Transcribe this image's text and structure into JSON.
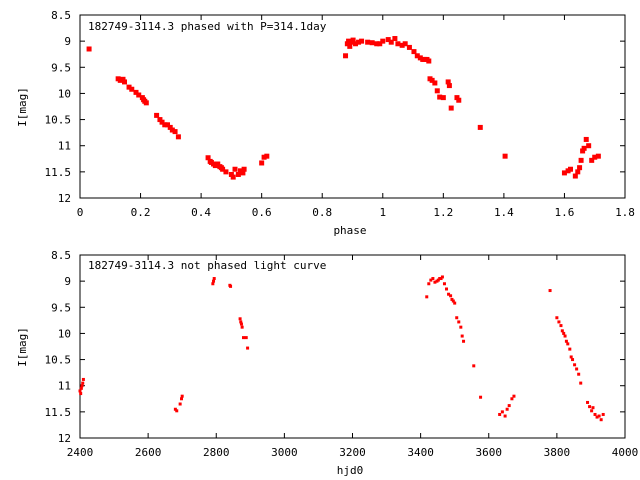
{
  "colors": {
    "points": "#ff0000",
    "axes": "#000000",
    "background": "#ffffff"
  },
  "chart_data": [
    {
      "type": "scatter",
      "title": "182749-3114.3 phased with P=314.1day",
      "xlabel": "phase",
      "ylabel": "I[mag]",
      "xlim": [
        0,
        1.8
      ],
      "ylim": [
        12,
        8.5
      ],
      "y_inverted": true,
      "grid": false,
      "xticks": [
        0,
        0.2,
        0.4,
        0.6,
        0.8,
        1,
        1.2,
        1.4,
        1.6,
        1.8
      ],
      "xtick_labels": [
        "0",
        "0.2",
        "0.4",
        "0.6",
        "0.8",
        "1",
        "1.2",
        "1.4",
        "1.6",
        "1.8"
      ],
      "yticks": [
        8.5,
        9,
        9.5,
        10,
        10.5,
        11,
        11.5,
        12
      ],
      "ytick_labels": [
        "8.5",
        "9",
        "9.5",
        "10",
        "10.5",
        "11",
        "11.5",
        "12"
      ],
      "marker": "filled square",
      "x": [
        0.03,
        0.126,
        0.133,
        0.142,
        0.147,
        0.162,
        0.171,
        0.185,
        0.194,
        0.206,
        0.21,
        0.214,
        0.219,
        0.253,
        0.264,
        0.271,
        0.28,
        0.289,
        0.298,
        0.305,
        0.314,
        0.325,
        0.423,
        0.43,
        0.434,
        0.441,
        0.447,
        0.455,
        0.462,
        0.467,
        0.471,
        0.482,
        0.5,
        0.506,
        0.512,
        0.523,
        0.53,
        0.538,
        0.542,
        0.6,
        0.608,
        0.617,
        0.877,
        0.883,
        0.887,
        0.891,
        0.896,
        0.902,
        0.91,
        0.92,
        0.93,
        0.95,
        0.965,
        0.98,
        0.99,
        1.0,
        1.018,
        1.028,
        1.04,
        1.05,
        1.064,
        1.074,
        1.088,
        1.103,
        1.114,
        1.124,
        1.132,
        1.138,
        1.146,
        1.152,
        1.156,
        1.163,
        1.172,
        1.18,
        1.188,
        1.2,
        1.216,
        1.22,
        1.226,
        1.245,
        1.251,
        1.322,
        1.404,
        1.6,
        1.612,
        1.62,
        1.636,
        1.644,
        1.65,
        1.655,
        1.66,
        1.665,
        1.672,
        1.68,
        1.69,
        1.7,
        1.712
      ],
      "y": [
        9.15,
        9.72,
        9.75,
        9.73,
        9.78,
        9.88,
        9.92,
        9.98,
        10.03,
        10.08,
        10.12,
        10.15,
        10.18,
        10.42,
        10.5,
        10.55,
        10.6,
        10.6,
        10.65,
        10.7,
        10.73,
        10.83,
        11.23,
        11.3,
        11.32,
        11.35,
        11.38,
        11.35,
        11.4,
        11.42,
        11.45,
        11.5,
        11.55,
        11.6,
        11.45,
        11.55,
        11.48,
        11.52,
        11.45,
        11.33,
        11.22,
        11.2,
        9.28,
        9.05,
        9.0,
        9.1,
        9.02,
        8.98,
        9.05,
        9.02,
        9.0,
        9.02,
        9.03,
        9.05,
        9.05,
        9.0,
        8.97,
        9.02,
        8.95,
        9.05,
        9.08,
        9.05,
        9.12,
        9.2,
        9.28,
        9.32,
        9.35,
        9.35,
        9.35,
        9.38,
        9.72,
        9.75,
        9.8,
        9.95,
        10.07,
        10.08,
        9.78,
        9.85,
        10.28,
        10.08,
        10.13,
        10.65,
        11.2,
        11.52,
        11.48,
        11.45,
        11.58,
        11.5,
        11.42,
        11.28,
        11.1,
        11.05,
        10.88,
        11.0,
        11.28,
        11.22,
        11.2
      ]
    },
    {
      "type": "scatter",
      "title": "182749-3114.3 not phased light curve",
      "xlabel": "hjd0",
      "ylabel": "I[mag]",
      "xlim": [
        2400,
        4000
      ],
      "ylim": [
        12,
        8.5
      ],
      "y_inverted": true,
      "grid": false,
      "xticks": [
        2400,
        2600,
        2800,
        3000,
        3200,
        3400,
        3600,
        3800,
        4000
      ],
      "xtick_labels": [
        "2400",
        "2600",
        "2800",
        "3000",
        "3200",
        "3400",
        "3600",
        "3800",
        "4000"
      ],
      "yticks": [
        8.5,
        9,
        9.5,
        10,
        10.5,
        11,
        11.5,
        12
      ],
      "ytick_labels": [
        "8.5",
        "9",
        "9.5",
        "10",
        "10.5",
        "11",
        "11.5",
        "12"
      ],
      "marker": "small dot",
      "x": [
        2400,
        2402,
        2404,
        2406,
        2408,
        2410,
        2680,
        2684,
        2694,
        2698,
        2700,
        2790,
        2792,
        2794,
        2840,
        2842,
        2870,
        2872,
        2874,
        2876,
        2880,
        2888,
        2892,
        3418,
        3424,
        3430,
        3436,
        3442,
        3448,
        3452,
        3456,
        3460,
        3464,
        3470,
        3476,
        3482,
        3488,
        3492,
        3496,
        3500,
        3506,
        3512,
        3518,
        3522,
        3526,
        3556,
        3576,
        3632,
        3640,
        3648,
        3654,
        3660,
        3668,
        3674,
        3780,
        3800,
        3806,
        3812,
        3816,
        3820,
        3824,
        3828,
        3832,
        3838,
        3842,
        3846,
        3852,
        3858,
        3864,
        3870,
        3890,
        3896,
        3902,
        3906,
        3912,
        3918,
        3924,
        3930,
        3936
      ],
      "y": [
        11.1,
        11.15,
        11.05,
        11.0,
        10.95,
        10.88,
        11.45,
        11.48,
        11.35,
        11.25,
        11.2,
        9.05,
        9.0,
        8.95,
        9.08,
        9.1,
        9.72,
        9.78,
        9.82,
        9.88,
        10.08,
        10.08,
        10.28,
        9.3,
        9.05,
        8.98,
        8.95,
        9.02,
        9.0,
        8.98,
        8.95,
        8.95,
        8.92,
        9.05,
        9.15,
        9.25,
        9.28,
        9.35,
        9.38,
        9.42,
        9.7,
        9.78,
        9.88,
        10.05,
        10.15,
        10.62,
        11.22,
        11.55,
        11.5,
        11.58,
        11.45,
        11.38,
        11.25,
        11.2,
        9.18,
        9.7,
        9.78,
        9.85,
        9.95,
        10.0,
        10.05,
        10.15,
        10.2,
        10.3,
        10.45,
        10.5,
        10.6,
        10.68,
        10.78,
        10.95,
        11.32,
        11.4,
        11.48,
        11.42,
        11.55,
        11.6,
        11.58,
        11.65,
        11.55
      ]
    }
  ]
}
